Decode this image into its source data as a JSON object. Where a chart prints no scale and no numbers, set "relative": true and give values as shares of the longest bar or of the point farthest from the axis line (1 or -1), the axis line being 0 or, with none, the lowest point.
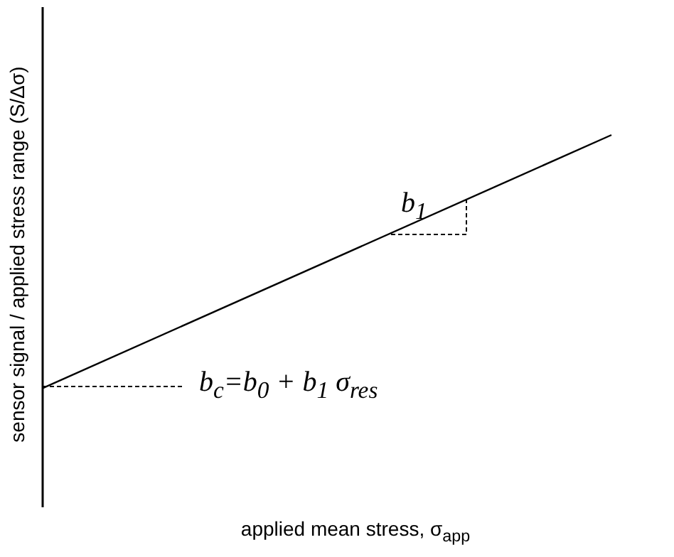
{
  "chart_data": {
    "type": "line",
    "relative": true,
    "xlabel": "applied mean stress, σ$_{app}$",
    "ylabel": "sensor signal / applied stress range (S/Δσ)",
    "categories": [
      null,
      null
    ],
    "series": [
      {
        "color": "#000000",
        "values": [
          0.32,
          1
        ]
      }
    ],
    "annotations": [
      "b$_{1}$",
      "b$_{c}$=b$_{0}$ + b$_{1}$ σ$_{res}$"
    ]
  }
}
